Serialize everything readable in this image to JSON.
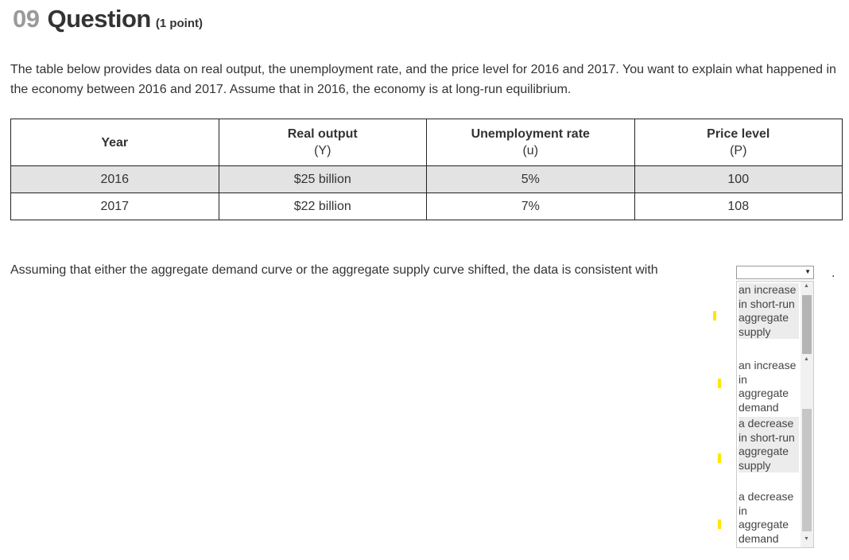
{
  "question": {
    "number": "09",
    "title": "Question",
    "points": "(1 point)"
  },
  "intro": "The table below provides data on real output, the unemployment rate, and the price level for 2016 and 2017. You want to explain what happened in the economy between 2016 and 2017. Assume that in 2016, the economy is at long-run equilibrium.",
  "table": {
    "headers": [
      {
        "label": "Year",
        "unit": ""
      },
      {
        "label": "Real output",
        "unit": "(Y)"
      },
      {
        "label": "Unemployment rate",
        "unit": "(u)"
      },
      {
        "label": "Price level",
        "unit": "(P)"
      }
    ],
    "rows": [
      [
        "2016",
        "$25 billion",
        "5%",
        "100"
      ],
      [
        "2017",
        "$22 billion",
        "7%",
        "108"
      ]
    ]
  },
  "prompt": "Assuming that either the aggregate demand curve or the aggregate supply curve shifted, the data is consistent with",
  "dropdown": {
    "selected": "",
    "options": [
      "an increase in short-run aggregate supply",
      "an increase in aggregate demand",
      "a decrease in short-run aggregate supply",
      "a decrease in aggregate demand"
    ]
  },
  "colors": {
    "marker": "#ffe600",
    "shaded_row": "#e3e3e3",
    "question_number": "#9a9a9a"
  }
}
